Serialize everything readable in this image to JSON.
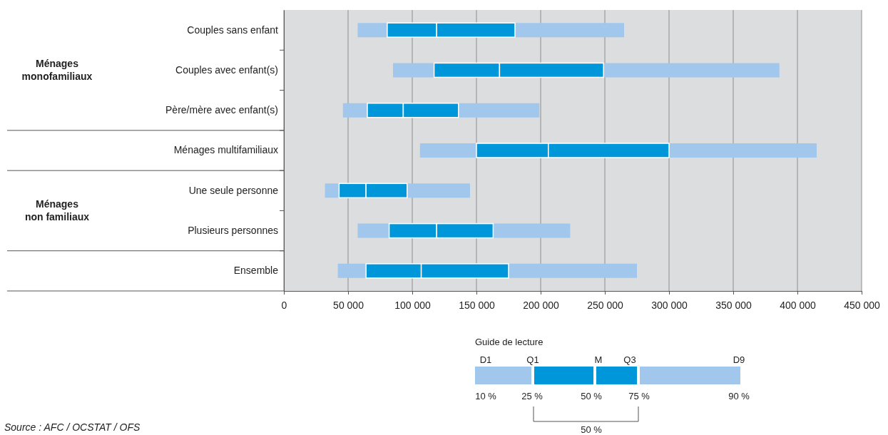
{
  "chart_data": {
    "type": "box",
    "orientation": "horizontal",
    "categories": [
      "Couples sans enfant",
      "Couples avec enfant(s)",
      "Père/mère avec enfant(s)",
      "Ménages multifamiliaux",
      "Une seule personne",
      "Plusieurs personnes",
      "Ensemble"
    ],
    "series": [
      {
        "color": "#0097da",
        "boxes": [
          {
            "low": 57500,
            "q1": 80500,
            "median": 119000,
            "q3": 180000,
            "high": 265000
          },
          {
            "low": 85000,
            "q1": 117000,
            "median": 168000,
            "q3": 249000,
            "high": 386000
          },
          {
            "low": 46000,
            "q1": 65000,
            "median": 93000,
            "q3": 136000,
            "high": 199000
          },
          {
            "low": 106000,
            "q1": 150000,
            "median": 206000,
            "q3": 300000,
            "high": 415000
          },
          {
            "low": 32000,
            "q1": 43000,
            "median": 64000,
            "q3": 96000,
            "high": 145000
          },
          {
            "low": 57500,
            "q1": 82000,
            "median": 119000,
            "q3": 163000,
            "high": 223000
          },
          {
            "low": 42000,
            "q1": 64000,
            "median": 107000,
            "q3": 175000,
            "high": 275000
          }
        ]
      }
    ],
    "xlim": [
      0,
      450000
    ],
    "xticks": [
      0,
      {
        "value": 50000,
        "label": "50 000"
      },
      {
        "value": 100000,
        "label": "100 000"
      },
      {
        "value": 150000,
        "label": "150 000"
      },
      {
        "value": 200000,
        "label": "200 000"
      },
      {
        "value": 250000,
        "label": "250 000"
      },
      {
        "value": 300000,
        "label": "300 000"
      },
      {
        "value": 350000,
        "label": "350 000"
      },
      {
        "value": 400000,
        "label": "400 000"
      },
      {
        "value": 450000,
        "label": "450 000"
      }
    ],
    "grid": "x",
    "annotations": [
      "Ménages monofamiliaux",
      "Ménages non familiaux",
      "Source : AFC / OCSTAT / OFS",
      "Guide de lecture",
      "D1",
      "Q1",
      "M",
      "Q3",
      "D9",
      "10 %",
      "25 %",
      "50 %",
      "75 %",
      "90 %",
      "50 %"
    ]
  }
}
